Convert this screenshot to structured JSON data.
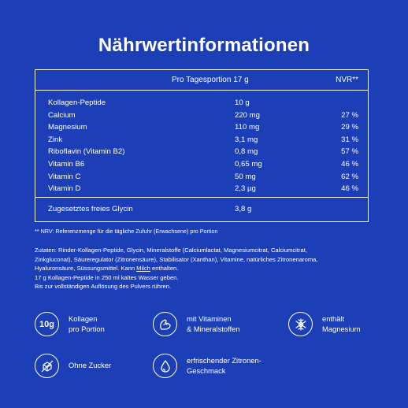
{
  "title": "Nährwertinformationen",
  "table": {
    "header_amount": "Pro Tagesportion 17 g",
    "header_nvr": "NVR**",
    "rows": [
      {
        "name": "Kollagen-Peptide",
        "amount": "10 g",
        "nvr": ""
      },
      {
        "name": "Calcium",
        "amount": "220 mg",
        "nvr": "27 %"
      },
      {
        "name": "Magnesium",
        "amount": "110 mg",
        "nvr": "29 %"
      },
      {
        "name": "Zink",
        "amount": "3,1 mg",
        "nvr": "31 %"
      },
      {
        "name": "Riboflavin (Vitamin B2)",
        "amount": "0,8 mg",
        "nvr": "57 %"
      },
      {
        "name": "Vitamin B6",
        "amount": "0,65 mg",
        "nvr": "46 %"
      },
      {
        "name": "Vitamin C",
        "amount": "50 mg",
        "nvr": "62 %"
      },
      {
        "name": "Vitamin D",
        "amount": "2,3 µg",
        "nvr": "46 %"
      }
    ],
    "glycin": {
      "name": "Zugesetztes freies Glycin",
      "amount": "3,8 g"
    }
  },
  "footnote": "** NRV: Referenzmenge für die tägliche Zufuhr (Erwachsene) pro Portion",
  "ingredients": {
    "line1": "Zutaten: Rinder-Kollagen-Peptide, Glycin, Mineralstoffe (Calciumlactat, Magnesiumcitrat, Calciumcitrat,",
    "line2": "Zinkgluconat), Säureregulator (Zitronensäure), Stabilisator (Xanthan), Vitamine, natürliches Zitronenaroma,",
    "line3_a": "Hyaluronsäure, Süssungsmittel. Kann ",
    "line3_u": "Milch",
    "line3_b": " enthalten.",
    "line4": "17 g Kollagen-Peptide in 250 ml kaltes Wasser geben.",
    "line5": "Bis zur vollständigen Auflösung des Pulvers rühren."
  },
  "features": {
    "f1": {
      "icon_text": "10g",
      "label": "Kollagen\npro Portion",
      "icon": "10g-badge-icon"
    },
    "f2": {
      "label": "mit Vitaminen\n& Mineralstoffen",
      "icon": "flexed-arm-icon"
    },
    "f3": {
      "label": "enthält\nMagnesium",
      "icon": "magnesium-icon"
    },
    "f4": {
      "label": "Ohne Zucker",
      "icon": "no-sugar-icon"
    },
    "f5": {
      "label": "erfrischender Zitronen-\nGeschmack",
      "icon": "droplet-icon"
    }
  }
}
